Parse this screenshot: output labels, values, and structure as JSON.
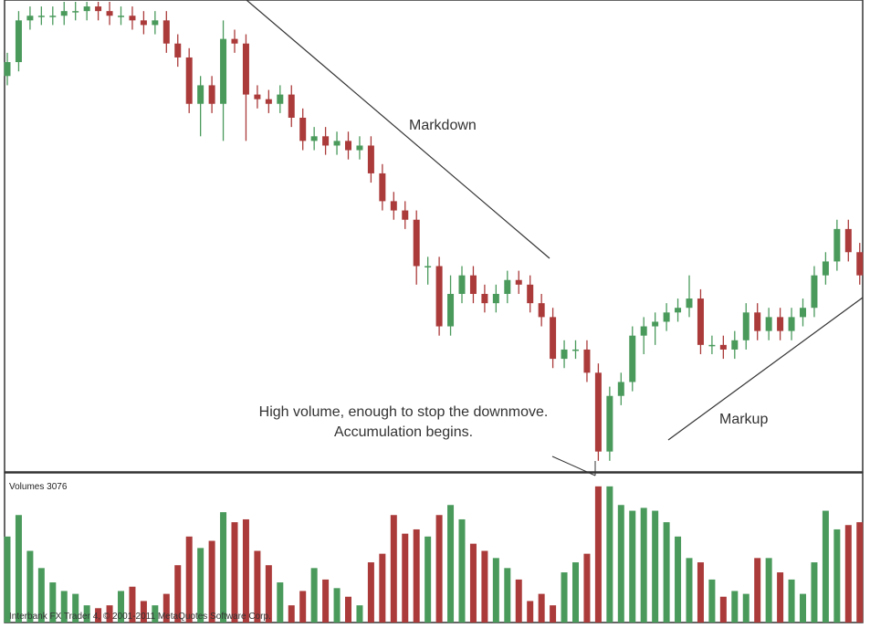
{
  "chart_data": {
    "type": "candlestick",
    "annotations": {
      "markdown": "Markdown",
      "volume_note": "High volume, enough to stop the downmove.",
      "accumulation_note": "Accumulation begins.",
      "markup": "Markup"
    },
    "volume_title": "Volumes 3076",
    "footer": "Interbank FX Trader 4, © 2001-2011 MetaQuotes Software Corp.",
    "up_color": "#4a9a5c",
    "down_color": "#ab3a3a",
    "ylim": [
      0,
      101
    ],
    "volume_ylim": [
      0,
      100
    ],
    "open": [
      85,
      88,
      97,
      98,
      98,
      98,
      99,
      99,
      100,
      99,
      98,
      98,
      97,
      96,
      97,
      92,
      89,
      79,
      83,
      79,
      93,
      92,
      81,
      80,
      79,
      81,
      76,
      71,
      72,
      70,
      71,
      69,
      70,
      64,
      58,
      56,
      54,
      44,
      44,
      31,
      38,
      42,
      38,
      36,
      38,
      41,
      40,
      36,
      33,
      24,
      26,
      26,
      21,
      4,
      16,
      19,
      29,
      31,
      32,
      34,
      35,
      37,
      27,
      27,
      26,
      28,
      34,
      30,
      33,
      30,
      33,
      35,
      42,
      45,
      52,
      47
    ],
    "high": [
      90,
      99,
      100,
      100,
      100,
      101,
      101,
      101,
      101,
      101,
      100,
      100,
      99,
      99,
      99,
      94,
      91,
      85,
      85,
      97,
      95,
      94,
      83,
      82,
      83,
      83,
      78,
      74,
      74,
      73,
      73,
      72,
      72,
      66,
      60,
      58,
      56,
      46,
      46,
      42,
      44,
      44,
      40,
      40,
      43,
      43,
      42,
      38,
      35,
      28,
      28,
      28,
      23,
      18,
      21,
      31,
      33,
      34,
      36,
      37,
      42,
      39,
      29,
      29,
      30,
      36,
      36,
      35,
      35,
      35,
      37,
      44,
      47,
      54,
      54,
      49
    ],
    "low": [
      83,
      86,
      95,
      96,
      96,
      96,
      97,
      97,
      97,
      96,
      96,
      95,
      94,
      94,
      90,
      87,
      77,
      72,
      77,
      71,
      90,
      71,
      78,
      77,
      77,
      74,
      69,
      69,
      68,
      68,
      67,
      67,
      62,
      56,
      54,
      52,
      40,
      40,
      29,
      29,
      36,
      36,
      34,
      34,
      36,
      38,
      34,
      31,
      22,
      22,
      24,
      19,
      2,
      2,
      14,
      17,
      25,
      27,
      30,
      32,
      33,
      25,
      25,
      24,
      24,
      26,
      28,
      28,
      28,
      28,
      31,
      33,
      40,
      43,
      45,
      40
    ],
    "close": [
      88,
      97,
      98,
      98,
      98,
      99,
      99,
      100,
      99,
      98,
      98,
      97,
      96,
      97,
      92,
      89,
      79,
      83,
      79,
      93,
      92,
      81,
      80,
      79,
      81,
      76,
      71,
      72,
      70,
      71,
      69,
      70,
      64,
      58,
      56,
      54,
      44,
      44,
      31,
      38,
      42,
      38,
      36,
      38,
      41,
      40,
      36,
      33,
      24,
      26,
      26,
      21,
      4,
      16,
      19,
      29,
      31,
      32,
      34,
      35,
      37,
      27,
      27,
      26,
      28,
      34,
      30,
      33,
      30,
      33,
      35,
      42,
      45,
      52,
      47,
      42
    ],
    "volume": [
      60,
      75,
      50,
      38,
      28,
      22,
      20,
      12,
      10,
      12,
      22,
      25,
      15,
      12,
      20,
      40,
      60,
      52,
      57,
      77,
      70,
      72,
      50,
      40,
      28,
      12,
      22,
      38,
      30,
      24,
      18,
      12,
      42,
      48,
      75,
      62,
      65,
      60,
      75,
      82,
      72,
      55,
      50,
      45,
      38,
      30,
      15,
      20,
      12,
      35,
      42,
      48,
      95,
      95,
      82,
      78,
      80,
      78,
      70,
      60,
      45,
      42,
      30,
      18,
      22,
      20,
      45,
      45,
      35,
      30,
      20,
      42,
      78,
      65,
      68,
      70
    ]
  }
}
